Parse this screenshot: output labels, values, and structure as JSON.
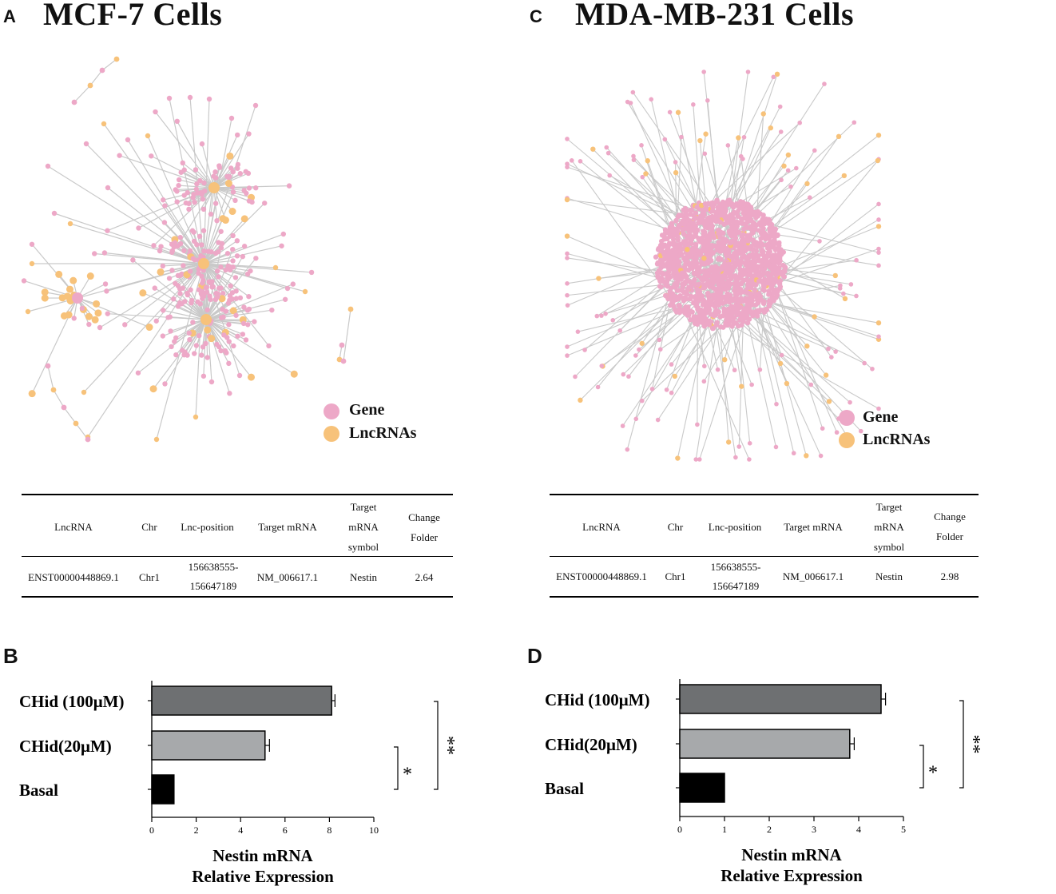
{
  "panels": {
    "A": {
      "letter": "A",
      "title": "MCF-7 Cells"
    },
    "C": {
      "letter": "C",
      "title": "MDA-MB-231 Cells"
    },
    "B": {
      "letter": "B"
    },
    "D": {
      "letter": "D"
    }
  },
  "network_legend": {
    "gene_label": "Gene",
    "lncrna_label": "LncRNAs",
    "gene_color": "#eda8c7",
    "lncrna_color": "#f7c27a",
    "edge_color": "#c9c9c9"
  },
  "tables": {
    "headers": {
      "lncrna": "LncRNA",
      "chr": "Chr",
      "lnc_position": "Lnc-position",
      "target_mrna": "Target mRNA",
      "symbol_l1": "Target",
      "symbol_l2": "mRNA",
      "symbol_l3": "symbol",
      "change_l1": "Change",
      "change_l2": "Folder"
    },
    "A": {
      "lncrna": "ENST00000448869.1",
      "chr": "Chr1",
      "pos_l1": "156638555-",
      "pos_l2": "156647189",
      "target_mrna": "NM_006617.1",
      "symbol": "Nestin",
      "change": "2.64"
    },
    "C": {
      "lncrna": "ENST00000448869.1",
      "chr": "Chr1",
      "pos_l1": "156638555-",
      "pos_l2": "156647189",
      "target_mrna": "NM_006617.1",
      "symbol": "Nestin",
      "change": "2.98"
    }
  },
  "chart_data": [
    {
      "panel": "B",
      "type": "bar",
      "orientation": "horizontal",
      "categories": [
        "CHid (100μM)",
        "CHid(20μM)",
        "Basal"
      ],
      "values": [
        8.1,
        5.1,
        1.0
      ],
      "errors": [
        0.15,
        0.2,
        0
      ],
      "colors": [
        "#6e7072",
        "#a7a9ab",
        "#000000"
      ],
      "xlim": [
        0,
        10
      ],
      "xticks": [
        "0",
        "2",
        "4",
        "6",
        "8",
        "10"
      ],
      "xlabel_l1": "Nestin mRNA",
      "xlabel_l2": "Relative Expression",
      "significance": [
        {
          "label": "*",
          "between": "CHid(20μM)-Basal"
        },
        {
          "label": "**",
          "between": "CHid (100μM)-Basal"
        }
      ]
    },
    {
      "panel": "D",
      "type": "bar",
      "orientation": "horizontal",
      "categories": [
        "CHid (100μM)",
        "CHid(20μM)",
        "Basal"
      ],
      "values": [
        4.5,
        3.8,
        1.0
      ],
      "errors": [
        0.1,
        0.1,
        0
      ],
      "colors": [
        "#6e7072",
        "#a7a9ab",
        "#000000"
      ],
      "xlim": [
        0,
        5
      ],
      "xticks": [
        "0",
        "1",
        "2",
        "3",
        "4",
        "5"
      ],
      "xlabel_l1": "Nestin mRNA",
      "xlabel_l2": "Relative Expression",
      "significance": [
        {
          "label": "*",
          "between": "CHid(20μM)-Basal"
        },
        {
          "label": "**",
          "between": "CHid (100μM)-Basal"
        }
      ]
    }
  ]
}
